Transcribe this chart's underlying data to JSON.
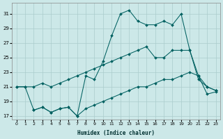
{
  "xlabel": "Humidex (Indice chaleur)",
  "bg_color": "#cce8e8",
  "grid_color": "#aacccc",
  "line_color": "#006060",
  "xlim_min": -0.5,
  "xlim_max": 23.5,
  "ylim_min": 16.5,
  "ylim_max": 32.5,
  "yticks": [
    17,
    19,
    21,
    23,
    25,
    27,
    29,
    31
  ],
  "xticks": [
    0,
    1,
    2,
    3,
    4,
    5,
    6,
    7,
    8,
    9,
    10,
    11,
    12,
    13,
    14,
    15,
    16,
    17,
    18,
    19,
    20,
    21,
    22,
    23
  ],
  "line1_x": [
    0,
    1,
    2,
    3,
    4,
    5,
    6,
    7,
    8,
    9,
    10,
    11,
    12,
    13,
    14,
    15,
    16,
    17,
    18,
    19,
    20,
    21,
    22,
    23
  ],
  "line1_y": [
    21,
    21,
    21,
    21.5,
    21,
    21.5,
    22,
    22.5,
    23,
    23.5,
    24,
    24.5,
    25,
    25.5,
    26,
    26.5,
    25,
    25,
    26,
    26,
    26,
    22,
    21,
    20.5
  ],
  "line2_x": [
    0,
    1,
    2,
    3,
    4,
    5,
    6,
    7,
    8,
    9,
    10,
    11,
    12,
    13,
    14,
    15,
    16,
    17,
    18,
    19,
    20,
    21,
    22,
    23
  ],
  "line2_y": [
    21,
    21,
    17.8,
    18.2,
    17.5,
    18,
    18.2,
    17,
    18,
    18.5,
    19,
    19.5,
    20,
    20.5,
    21,
    21,
    21.5,
    22,
    22,
    22.5,
    23,
    22.5,
    20,
    20.3
  ],
  "line3_x": [
    2,
    3,
    4,
    5,
    6,
    7,
    8,
    9,
    10,
    11,
    12,
    13,
    14,
    15,
    16,
    17,
    18,
    19,
    20,
    21,
    22,
    23
  ],
  "line3_y": [
    17.8,
    18.2,
    17.5,
    18,
    18.2,
    17,
    22.5,
    22,
    24.5,
    28,
    31,
    31.5,
    30.0,
    29.5,
    29.5,
    30.0,
    29.5,
    31,
    26,
    22.5,
    21,
    20.5
  ]
}
